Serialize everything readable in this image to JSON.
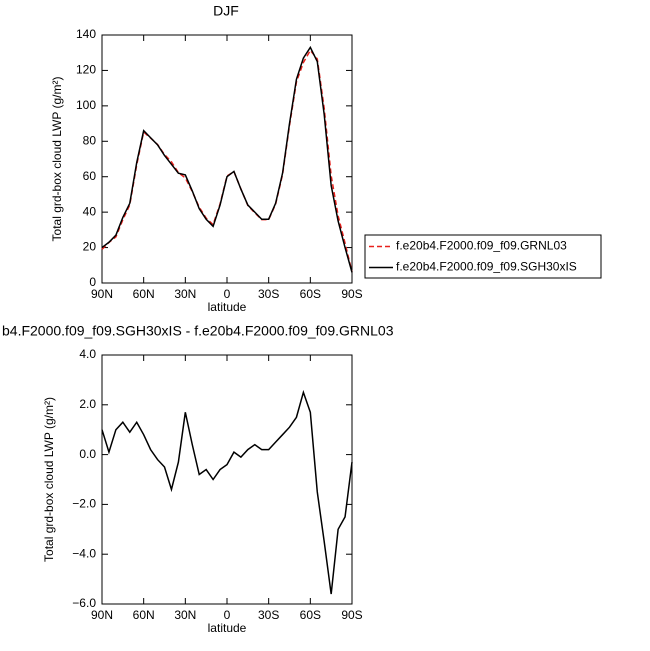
{
  "chart_data": [
    {
      "type": "line",
      "title": "DJF",
      "xlabel": "latitude",
      "ylabel": "Total grd-box cloud LWP (g/m²)",
      "x": [
        90,
        85,
        80,
        75,
        70,
        65,
        60,
        55,
        50,
        45,
        40,
        35,
        30,
        25,
        20,
        15,
        10,
        5,
        0,
        -5,
        -10,
        -15,
        -20,
        -25,
        -30,
        -35,
        -40,
        -45,
        -50,
        -55,
        -60,
        -65,
        -70,
        -75,
        -80,
        -85,
        -90
      ],
      "series": [
        {
          "name": "f.e20b4.F2000.f09_f09.GRNL03",
          "color": "#e8211c",
          "style": "dashed",
          "values": [
            19,
            22.9,
            26,
            35.7,
            44.1,
            66.7,
            85.2,
            81.8,
            78.2,
            72.5,
            68.4,
            62.3,
            59.3,
            51.6,
            42.8,
            36.6,
            33,
            44.6,
            60.4,
            62.9,
            53.1,
            43.8,
            39.6,
            35.8,
            35.8,
            44.5,
            61.2,
            88.9,
            113.5,
            124.5,
            131.3,
            126.5,
            98.5,
            60.6,
            38,
            22.5,
            6.3
          ]
        },
        {
          "name": "f.e20b4.F2000.f09_f09.SGH30xIS",
          "color": "#000000",
          "style": "solid",
          "values": [
            20,
            23,
            27,
            37,
            45,
            68,
            86,
            82,
            78,
            72,
            67,
            62,
            61,
            52,
            42,
            36,
            32,
            44,
            60,
            63,
            53,
            44,
            40,
            36,
            36,
            45,
            62,
            90,
            115,
            127,
            133,
            125,
            95,
            55,
            35,
            20,
            6
          ]
        }
      ],
      "xlim": [
        90,
        -90
      ],
      "xticks": [
        {
          "value": 90,
          "label": "90N"
        },
        {
          "value": 60,
          "label": "60N"
        },
        {
          "value": 30,
          "label": "30N"
        },
        0,
        {
          "value": -30,
          "label": "30S"
        },
        {
          "value": -60,
          "label": "60S"
        },
        {
          "value": -90,
          "label": "90S"
        }
      ],
      "ylim": [
        0,
        140
      ],
      "yticks": [
        0,
        20,
        40,
        60,
        80,
        100,
        120,
        140
      ]
    },
    {
      "type": "line",
      "title": "b4.F2000.f09_f09.SGH30xIS - f.e20b4.F2000.f09_f09.GRNL03",
      "xlabel": "latitude",
      "ylabel": "Total grd-box cloud LWP (g/m²)",
      "x": [
        90,
        85,
        80,
        75,
        70,
        65,
        60,
        55,
        50,
        45,
        40,
        35,
        30,
        25,
        20,
        15,
        10,
        5,
        0,
        -5,
        -10,
        -15,
        -20,
        -25,
        -30,
        -35,
        -40,
        -45,
        -50,
        -55,
        -60,
        -65,
        -70,
        -75,
        -80,
        -85,
        -90
      ],
      "series": [
        {
          "color": "#000000",
          "style": "solid",
          "values": [
            1.0,
            0.1,
            1.0,
            1.3,
            0.9,
            1.3,
            0.8,
            0.2,
            -0.2,
            -0.5,
            -1.4,
            -0.3,
            1.7,
            0.4,
            -0.8,
            -0.6,
            -1.0,
            -0.6,
            -0.4,
            0.1,
            -0.1,
            0.2,
            0.4,
            0.2,
            0.2,
            0.5,
            0.8,
            1.1,
            1.5,
            2.5,
            1.7,
            -1.5,
            -3.5,
            -5.6,
            -3.0,
            -2.5,
            -0.3
          ]
        }
      ],
      "xlim": [
        90,
        -90
      ],
      "xticks": [
        {
          "value": 90,
          "label": "90N"
        },
        {
          "value": 60,
          "label": "60N"
        },
        {
          "value": 30,
          "label": "30N"
        },
        0,
        {
          "value": -30,
          "label": "30S"
        },
        {
          "value": -60,
          "label": "60S"
        },
        {
          "value": -90,
          "label": "90S"
        }
      ],
      "ylim": [
        -6,
        4
      ],
      "yticks": [
        {
          "value": -6,
          "label": "−6.0"
        },
        {
          "value": -4,
          "label": "−4.0"
        },
        {
          "value": -2,
          "label": "−2.0"
        },
        {
          "value": 0,
          "label": "0.0"
        },
        {
          "value": 2,
          "label": "2.0"
        },
        {
          "value": 4,
          "label": "4.0"
        }
      ]
    }
  ]
}
